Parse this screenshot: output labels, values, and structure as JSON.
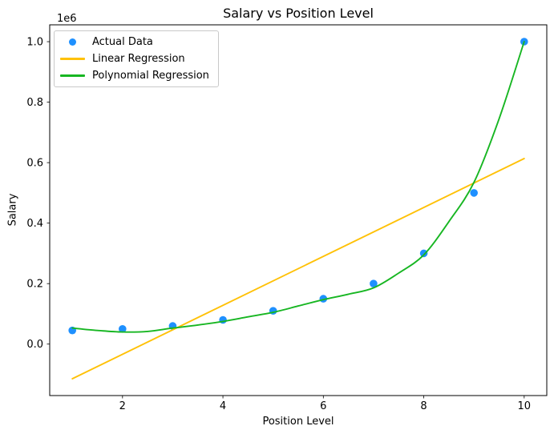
{
  "figure": {
    "background": "#ffffff"
  },
  "chart_data": {
    "type": "scatter",
    "title": "Salary vs Position Level",
    "xlabel": "Position Level",
    "ylabel": "Salary",
    "y_offset_text": "1e6",
    "xlim": [
      0.55,
      10.45
    ],
    "ylim": [
      -170177,
      1055723
    ],
    "xticks": [
      2,
      4,
      6,
      8,
      10
    ],
    "xtick_labels": [
      "2",
      "4",
      "6",
      "8",
      "10"
    ],
    "yticks": [
      0,
      200000,
      400000,
      600000,
      800000,
      1000000
    ],
    "ytick_labels": [
      "0.0",
      "0.2",
      "0.4",
      "0.6",
      "0.8",
      "1.0"
    ],
    "grid": false,
    "legend_position": "upper left",
    "colors": {
      "actual": "#1e90ff",
      "linear": "#ffc107",
      "polynomial": "#17b622",
      "spine": "#000000"
    },
    "series": [
      {
        "name": "Actual Data",
        "kind": "scatter",
        "color": "#1e90ff",
        "x": [
          1,
          2,
          3,
          4,
          5,
          6,
          7,
          8,
          9,
          10
        ],
        "y": [
          45000,
          50000,
          60000,
          80000,
          110000,
          150000,
          200000,
          300000,
          500000,
          1000000
        ]
      },
      {
        "name": "Linear Regression",
        "kind": "line",
        "curve": "straight",
        "color": "#ffc107",
        "x": [
          1,
          10
        ],
        "y": [
          -114455,
          613455
        ]
      },
      {
        "name": "Polynomial Regression",
        "kind": "line",
        "curve": "smooth",
        "color": "#17b622",
        "x": [
          1,
          1.5,
          2,
          2.5,
          3,
          3.5,
          4,
          4.5,
          5,
          5.5,
          6,
          6.5,
          7,
          7.5,
          8,
          8.5,
          9,
          9.5,
          10
        ],
        "y": [
          53000,
          45000,
          40000,
          42000,
          53000,
          63000,
          75000,
          90000,
          105000,
          126000,
          147000,
          165000,
          186000,
          235000,
          295000,
          405000,
          535000,
          745000,
          1000000
        ]
      }
    ]
  }
}
